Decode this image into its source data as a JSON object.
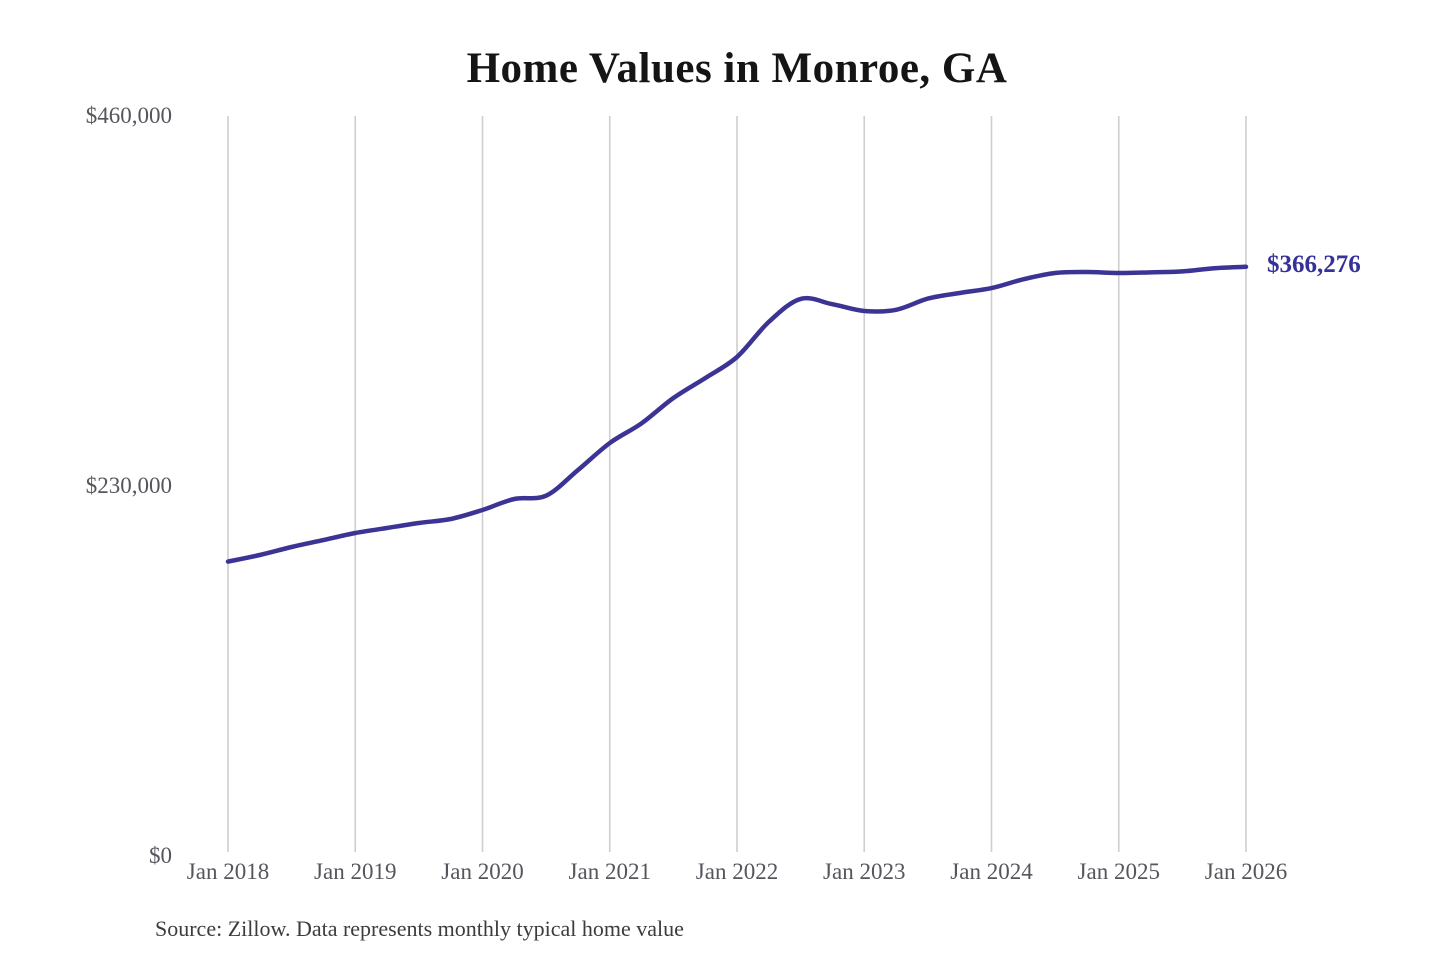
{
  "title": "Home Values in Monroe, GA",
  "source_note": "Source: Zillow. Data represents monthly typical home value",
  "end_label": "$366,276",
  "colors": {
    "line": "#3c3494",
    "end_label": "#363199",
    "grid": "#cfcfcf",
    "tick_text": "#55565c",
    "title_text": "#151515",
    "source_text": "#3c3c3c"
  },
  "chart_data": {
    "type": "line",
    "title": "Home Values in Monroe, GA",
    "series_name": "Monthly typical home value",
    "legend": false,
    "grid": "vertical-only",
    "ylim": [
      0,
      460000
    ],
    "y_tick_values": [
      0,
      230000,
      460000
    ],
    "y_tick_labels": [
      "$0",
      "$230,000",
      "$460,000"
    ],
    "x_tick_labels": [
      "Jan 2018",
      "Jan 2019",
      "Jan 2020",
      "Jan 2021",
      "Jan 2022",
      "Jan 2023",
      "Jan 2024",
      "Jan 2025",
      "Jan 2026"
    ],
    "x": [
      "2018-01",
      "2018-04",
      "2018-07",
      "2018-10",
      "2019-01",
      "2019-04",
      "2019-07",
      "2019-10",
      "2020-01",
      "2020-04",
      "2020-07",
      "2020-10",
      "2021-01",
      "2021-04",
      "2021-07",
      "2021-10",
      "2022-01",
      "2022-04",
      "2022-07",
      "2022-10",
      "2023-01",
      "2023-04",
      "2023-07",
      "2023-10",
      "2024-01",
      "2024-04",
      "2024-07",
      "2024-10",
      "2025-01",
      "2025-04",
      "2025-07",
      "2025-10",
      "2026-01"
    ],
    "values": [
      183000,
      187100,
      192100,
      196400,
      200800,
      203900,
      207000,
      209500,
      215100,
      221900,
      224000,
      239900,
      256700,
      269000,
      284700,
      297100,
      310200,
      332000,
      346300,
      343000,
      338800,
      339500,
      346500,
      350000,
      353000,
      358500,
      362400,
      363000,
      362400,
      362800,
      363400,
      365400,
      366276
    ],
    "final_value": 366276,
    "final_value_label": "$366,276"
  }
}
